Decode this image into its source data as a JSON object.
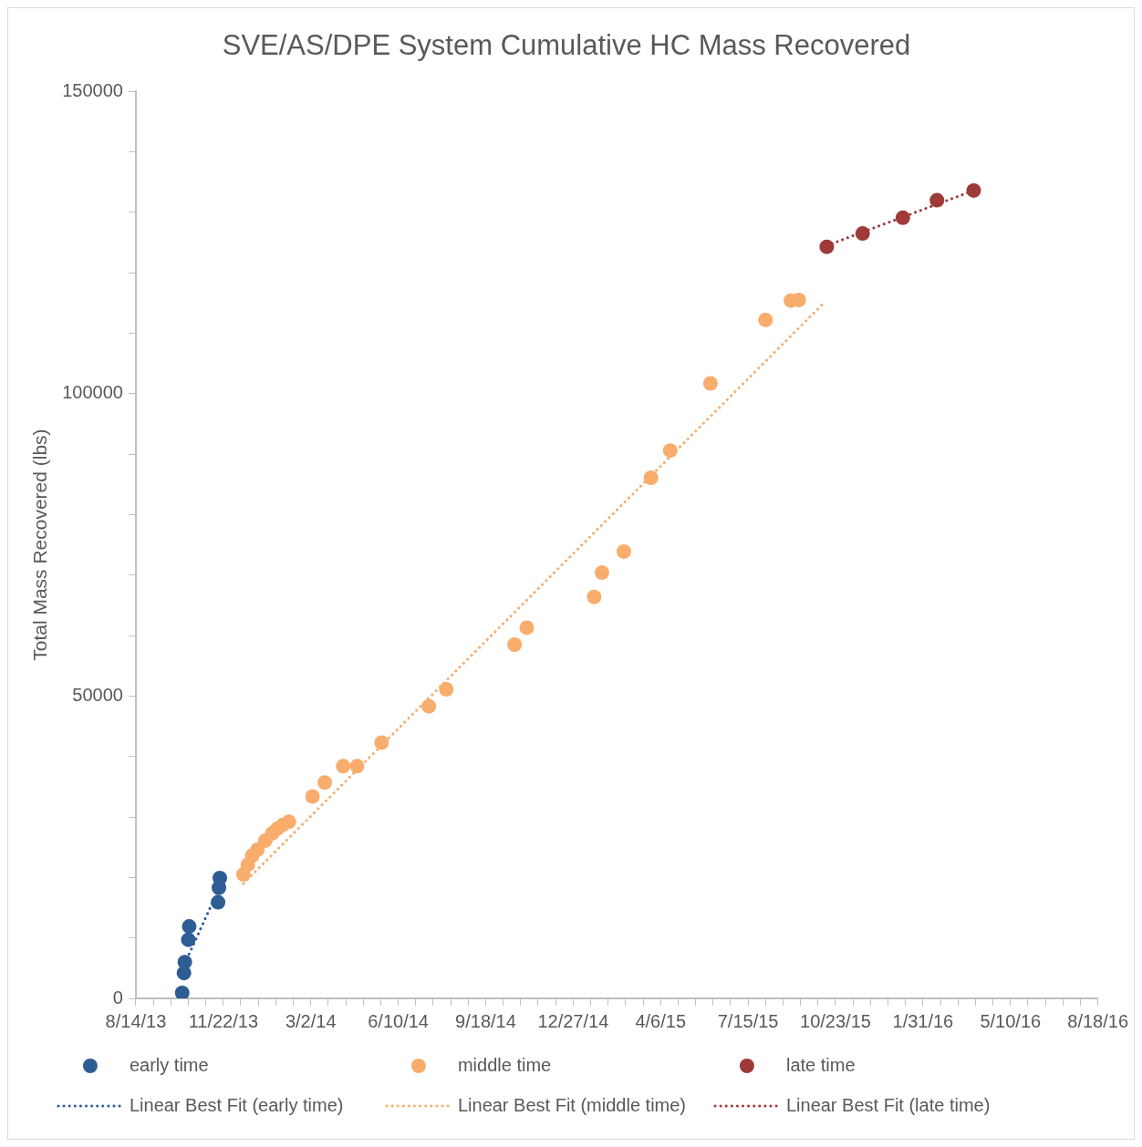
{
  "chart_data": {
    "type": "scatter",
    "title": "SVE/AS/DPE System Cumulative HC Mass Recovered",
    "ylabel": "Total Mass Recovered (lbs)",
    "xlim": [
      "2013-08-14",
      "2016-08-18"
    ],
    "xticks": [
      {
        "value": "2013-08-14",
        "label": "8/14/13"
      },
      {
        "value": "2013-09-03",
        "label": null
      },
      {
        "value": "2013-09-23",
        "label": null
      },
      {
        "value": "2013-10-13",
        "label": null
      },
      {
        "value": "2013-11-02",
        "label": null
      },
      {
        "value": "2013-11-22",
        "label": "11/22/13"
      },
      {
        "value": "2013-12-12",
        "label": null
      },
      {
        "value": "2014-01-01",
        "label": null
      },
      {
        "value": "2014-01-21",
        "label": null
      },
      {
        "value": "2014-02-10",
        "label": null
      },
      {
        "value": "2014-03-02",
        "label": "3/2/14"
      },
      {
        "value": "2014-03-22",
        "label": null
      },
      {
        "value": "2014-04-11",
        "label": null
      },
      {
        "value": "2014-05-01",
        "label": null
      },
      {
        "value": "2014-05-21",
        "label": null
      },
      {
        "value": "2014-06-10",
        "label": "6/10/14"
      },
      {
        "value": "2014-06-30",
        "label": null
      },
      {
        "value": "2014-07-20",
        "label": null
      },
      {
        "value": "2014-08-09",
        "label": null
      },
      {
        "value": "2014-08-29",
        "label": null
      },
      {
        "value": "2014-09-18",
        "label": "9/18/14"
      },
      {
        "value": "2014-10-08",
        "label": null
      },
      {
        "value": "2014-10-28",
        "label": null
      },
      {
        "value": "2014-11-17",
        "label": null
      },
      {
        "value": "2014-12-07",
        "label": null
      },
      {
        "value": "2014-12-27",
        "label": "12/27/14"
      },
      {
        "value": "2015-01-16",
        "label": null
      },
      {
        "value": "2015-02-05",
        "label": null
      },
      {
        "value": "2015-02-25",
        "label": null
      },
      {
        "value": "2015-03-17",
        "label": null
      },
      {
        "value": "2015-04-06",
        "label": "4/6/15"
      },
      {
        "value": "2015-04-26",
        "label": null
      },
      {
        "value": "2015-05-16",
        "label": null
      },
      {
        "value": "2015-06-05",
        "label": null
      },
      {
        "value": "2015-06-25",
        "label": null
      },
      {
        "value": "2015-07-15",
        "label": "7/15/15"
      },
      {
        "value": "2015-08-04",
        "label": null
      },
      {
        "value": "2015-08-24",
        "label": null
      },
      {
        "value": "2015-09-13",
        "label": null
      },
      {
        "value": "2015-10-03",
        "label": null
      },
      {
        "value": "2015-10-23",
        "label": "10/23/15"
      },
      {
        "value": "2015-11-12",
        "label": null
      },
      {
        "value": "2015-12-02",
        "label": null
      },
      {
        "value": "2015-12-22",
        "label": null
      },
      {
        "value": "2016-01-11",
        "label": null
      },
      {
        "value": "2016-01-31",
        "label": "1/31/16"
      },
      {
        "value": "2016-02-20",
        "label": null
      },
      {
        "value": "2016-03-11",
        "label": null
      },
      {
        "value": "2016-03-31",
        "label": null
      },
      {
        "value": "2016-04-20",
        "label": null
      },
      {
        "value": "2016-05-10",
        "label": "5/10/16"
      },
      {
        "value": "2016-05-30",
        "label": null
      },
      {
        "value": "2016-06-19",
        "label": null
      },
      {
        "value": "2016-07-09",
        "label": null
      },
      {
        "value": "2016-07-29",
        "label": null
      },
      {
        "value": "2016-08-18",
        "label": "8/18/16"
      }
    ],
    "ylim": [
      0,
      150000
    ],
    "yticks": [
      0,
      {
        "value": 10000,
        "label": null
      },
      {
        "value": 20000,
        "label": null
      },
      {
        "value": 30000,
        "label": null
      },
      {
        "value": 40000,
        "label": null
      },
      50000,
      {
        "value": 60000,
        "label": null
      },
      {
        "value": 70000,
        "label": null
      },
      {
        "value": 80000,
        "label": null
      },
      {
        "value": 90000,
        "label": null
      },
      100000,
      {
        "value": 110000,
        "label": null
      },
      {
        "value": 120000,
        "label": null
      },
      {
        "value": 130000,
        "label": null
      },
      {
        "value": 140000,
        "label": null
      },
      150000
    ],
    "legend": "bottom",
    "marker": "circle",
    "series": [
      {
        "name": "early time",
        "type": "scatter",
        "color": "#2e5c94",
        "x": [
          "2013-10-06",
          "2013-10-08",
          "2013-10-09",
          "2013-10-13",
          "2013-10-14",
          "2013-11-16",
          "2013-11-17",
          "2013-11-18"
        ],
        "values": [
          900,
          4200,
          6000,
          9700,
          11900,
          15900,
          18300,
          19900
        ]
      },
      {
        "name": "middle time",
        "type": "scatter",
        "color": "#f8ad6c",
        "x": [
          "2013-12-15",
          "2013-12-20",
          "2013-12-25",
          "2013-12-31",
          "2014-01-09",
          "2014-01-17",
          "2014-01-23",
          "2014-01-29",
          "2014-02-05",
          "2014-03-04",
          "2014-03-18",
          "2014-04-08",
          "2014-04-24",
          "2014-05-22",
          "2014-07-15",
          "2014-08-04",
          "2014-10-21",
          "2014-11-04",
          "2015-01-20",
          "2015-01-29",
          "2015-02-23",
          "2015-03-26",
          "2015-04-17",
          "2015-06-02",
          "2015-08-04",
          "2015-09-02",
          "2015-09-11"
        ],
        "values": [
          20500,
          22100,
          23600,
          24600,
          26100,
          27300,
          28100,
          28700,
          29200,
          33400,
          35700,
          38400,
          38400,
          42300,
          48300,
          51100,
          58500,
          61300,
          66400,
          70400,
          73900,
          86100,
          90600,
          101700,
          112200,
          115400,
          115500
        ]
      },
      {
        "name": "late time",
        "type": "scatter",
        "color": "#9e3a38",
        "x": [
          "2015-10-13",
          "2015-11-23",
          "2016-01-08",
          "2016-02-16",
          "2016-03-29"
        ],
        "values": [
          124300,
          126500,
          129100,
          132000,
          133600
        ]
      },
      {
        "name": "Linear Best Fit (early time)",
        "type": "line",
        "line_style": "dotted",
        "marker": "none",
        "color": "#2e5c94",
        "x": [
          "2013-10-06",
          "2013-11-18"
        ],
        "values": [
          4800,
          18500
        ]
      },
      {
        "name": "Linear Best Fit (middle time)",
        "type": "line",
        "line_style": "dotted",
        "marker": "none",
        "color": "#f8ad6c",
        "x": [
          "2013-12-15",
          "2015-10-11"
        ],
        "values": [
          19000,
          115200
        ]
      },
      {
        "name": "Linear Best Fit (late time)",
        "type": "line",
        "line_style": "dotted",
        "marker": "none",
        "color": "#9e3a38",
        "x": [
          "2015-10-13",
          "2016-03-29"
        ],
        "values": [
          124500,
          133600
        ]
      }
    ]
  }
}
